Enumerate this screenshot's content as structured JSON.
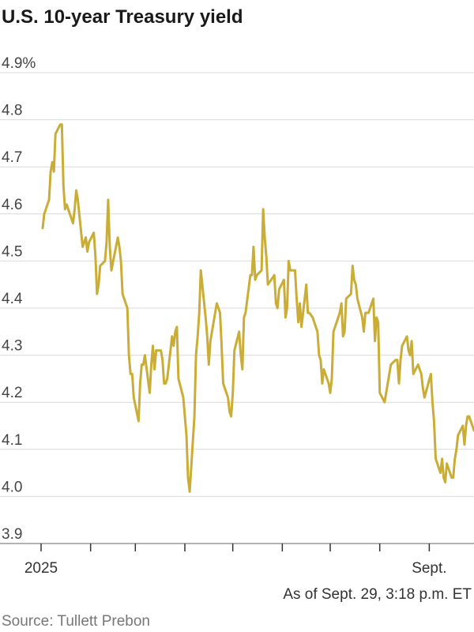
{
  "chart_data": {
    "type": "line",
    "title": "U.S. 10-year Treasury yield",
    "ylim": [
      3.9,
      4.9
    ],
    "y_ticks": [
      {
        "value": 4.9,
        "label": "4.9%"
      },
      {
        "value": 4.8,
        "label": "4.8"
      },
      {
        "value": 4.7,
        "label": "4.7"
      },
      {
        "value": 4.6,
        "label": "4.6"
      },
      {
        "value": 4.5,
        "label": "4.5"
      },
      {
        "value": 4.4,
        "label": "4.4"
      },
      {
        "value": 4.3,
        "label": "4.3"
      },
      {
        "value": 4.2,
        "label": "4.2"
      },
      {
        "value": 4.1,
        "label": "4.1"
      },
      {
        "value": 4.0,
        "label": "4.0"
      },
      {
        "value": 3.9,
        "label": "3.9"
      }
    ],
    "xlim": [
      "2025-01-01",
      "2025-09-29"
    ],
    "x_ticks": [
      {
        "date": "2025-01-01",
        "label": "2025"
      },
      {
        "date": "2025-02-01",
        "label": ""
      },
      {
        "date": "2025-03-01",
        "label": ""
      },
      {
        "date": "2025-04-01",
        "label": ""
      },
      {
        "date": "2025-05-01",
        "label": ""
      },
      {
        "date": "2025-06-01",
        "label": ""
      },
      {
        "date": "2025-07-01",
        "label": ""
      },
      {
        "date": "2025-08-01",
        "label": ""
      },
      {
        "date": "2025-09-01",
        "label": "Sept."
      }
    ],
    "grid": true,
    "line_color": "#c9ad36",
    "series": [
      {
        "x": [
          "2025-01-02",
          "2025-01-03",
          "2025-01-06",
          "2025-01-07",
          "2025-01-08",
          "2025-01-09",
          "2025-01-10",
          "2025-01-13",
          "2025-01-14",
          "2025-01-15",
          "2025-01-16",
          "2025-01-17",
          "2025-01-21",
          "2025-01-22",
          "2025-01-23",
          "2025-01-24",
          "2025-01-27",
          "2025-01-28",
          "2025-01-29",
          "2025-01-30",
          "2025-01-31",
          "2025-02-03",
          "2025-02-04",
          "2025-02-05",
          "2025-02-06",
          "2025-02-07",
          "2025-02-10",
          "2025-02-11",
          "2025-02-12",
          "2025-02-13",
          "2025-02-14",
          "2025-02-18",
          "2025-02-19",
          "2025-02-20",
          "2025-02-21",
          "2025-02-24",
          "2025-02-25",
          "2025-02-26",
          "2025-02-27",
          "2025-02-28",
          "2025-03-03",
          "2025-03-04",
          "2025-03-05",
          "2025-03-06",
          "2025-03-07",
          "2025-03-10",
          "2025-03-11",
          "2025-03-12",
          "2025-03-13",
          "2025-03-14",
          "2025-03-17",
          "2025-03-18",
          "2025-03-19",
          "2025-03-20",
          "2025-03-21",
          "2025-03-24",
          "2025-03-25",
          "2025-03-26",
          "2025-03-27",
          "2025-03-28",
          "2025-03-31",
          "2025-04-01",
          "2025-04-02",
          "2025-04-03",
          "2025-04-04",
          "2025-04-07",
          "2025-04-08",
          "2025-04-09",
          "2025-04-10",
          "2025-04-11",
          "2025-04-14",
          "2025-04-15",
          "2025-04-16",
          "2025-04-17",
          "2025-04-21",
          "2025-04-22",
          "2025-04-23",
          "2025-04-24",
          "2025-04-25",
          "2025-04-28",
          "2025-04-29",
          "2025-04-30",
          "2025-05-01",
          "2025-05-02",
          "2025-05-05",
          "2025-05-06",
          "2025-05-07",
          "2025-05-08",
          "2025-05-09",
          "2025-05-12",
          "2025-05-13",
          "2025-05-14",
          "2025-05-15",
          "2025-05-16",
          "2025-05-19",
          "2025-05-20",
          "2025-05-21",
          "2025-05-22",
          "2025-05-23",
          "2025-05-27",
          "2025-05-28",
          "2025-05-29",
          "2025-05-30",
          "2025-06-02",
          "2025-06-03",
          "2025-06-04",
          "2025-06-05",
          "2025-06-06",
          "2025-06-09",
          "2025-06-10",
          "2025-06-11",
          "2025-06-12",
          "2025-06-13",
          "2025-06-16",
          "2025-06-17",
          "2025-06-18",
          "2025-06-20",
          "2025-06-23",
          "2025-06-24",
          "2025-06-25",
          "2025-06-26",
          "2025-06-27",
          "2025-06-30",
          "2025-07-01",
          "2025-07-02",
          "2025-07-03",
          "2025-07-07",
          "2025-07-08",
          "2025-07-09",
          "2025-07-10",
          "2025-07-11",
          "2025-07-14",
          "2025-07-15",
          "2025-07-16",
          "2025-07-17",
          "2025-07-18",
          "2025-07-21",
          "2025-07-22",
          "2025-07-23",
          "2025-07-24",
          "2025-07-25",
          "2025-07-28",
          "2025-07-29",
          "2025-07-30",
          "2025-07-31",
          "2025-08-01",
          "2025-08-04",
          "2025-08-05",
          "2025-08-06",
          "2025-08-07",
          "2025-08-08",
          "2025-08-11",
          "2025-08-12",
          "2025-08-13",
          "2025-08-14",
          "2025-08-15",
          "2025-08-18",
          "2025-08-19",
          "2025-08-20",
          "2025-08-21",
          "2025-08-22",
          "2025-08-25",
          "2025-08-26",
          "2025-08-27",
          "2025-08-28",
          "2025-08-29",
          "2025-09-02",
          "2025-09-03",
          "2025-09-04",
          "2025-09-05",
          "2025-09-08",
          "2025-09-09",
          "2025-09-10",
          "2025-09-11",
          "2025-09-12",
          "2025-09-15",
          "2025-09-16",
          "2025-09-17",
          "2025-09-18",
          "2025-09-19",
          "2025-09-22",
          "2025-09-23",
          "2025-09-24",
          "2025-09-25",
          "2025-09-26",
          "2025-09-29"
        ],
        "values": [
          4.57,
          4.6,
          4.63,
          4.69,
          4.71,
          4.69,
          4.77,
          4.79,
          4.79,
          4.66,
          4.61,
          4.62,
          4.58,
          4.61,
          4.65,
          4.63,
          4.53,
          4.54,
          4.55,
          4.52,
          4.54,
          4.56,
          4.51,
          4.43,
          4.45,
          4.49,
          4.5,
          4.54,
          4.63,
          4.53,
          4.48,
          4.55,
          4.53,
          4.5,
          4.43,
          4.4,
          4.3,
          4.26,
          4.26,
          4.21,
          4.16,
          4.24,
          4.28,
          4.28,
          4.3,
          4.22,
          4.28,
          4.32,
          4.27,
          4.31,
          4.31,
          4.29,
          4.24,
          4.24,
          4.25,
          4.34,
          4.32,
          4.35,
          4.36,
          4.25,
          4.21,
          4.17,
          4.13,
          4.04,
          4.01,
          4.17,
          4.3,
          4.34,
          4.39,
          4.48,
          4.38,
          4.34,
          4.28,
          4.33,
          4.41,
          4.4,
          4.39,
          4.32,
          4.24,
          4.21,
          4.18,
          4.17,
          4.22,
          4.31,
          4.35,
          4.3,
          4.27,
          4.38,
          4.39,
          4.47,
          4.47,
          4.53,
          4.46,
          4.47,
          4.48,
          4.61,
          4.55,
          4.51,
          4.45,
          4.47,
          4.41,
          4.4,
          4.44,
          4.46,
          4.38,
          4.4,
          4.5,
          4.48,
          4.48,
          4.42,
          4.37,
          4.41,
          4.36,
          4.45,
          4.39,
          4.39,
          4.38,
          4.35,
          4.3,
          4.29,
          4.24,
          4.27,
          4.24,
          4.22,
          4.25,
          4.35,
          4.39,
          4.41,
          4.34,
          4.35,
          4.42,
          4.43,
          4.49,
          4.46,
          4.45,
          4.42,
          4.38,
          4.35,
          4.39,
          4.39,
          4.39,
          4.42,
          4.33,
          4.38,
          4.37,
          4.22,
          4.2,
          4.22,
          4.24,
          4.26,
          4.28,
          4.29,
          4.29,
          4.24,
          4.29,
          4.32,
          4.34,
          4.31,
          4.3,
          4.33,
          4.26,
          4.28,
          4.27,
          4.26,
          4.23,
          4.21,
          4.26,
          4.2,
          4.16,
          4.08,
          4.05,
          4.08,
          4.04,
          4.03,
          4.07,
          4.04,
          4.04,
          4.08,
          4.1,
          4.13,
          4.15,
          4.11,
          4.15,
          4.17,
          4.17,
          4.14
        ]
      }
    ],
    "annotation": "As of Sept. 29, 3:18 p.m. ET"
  },
  "source": "Source: Tullett Prebon"
}
